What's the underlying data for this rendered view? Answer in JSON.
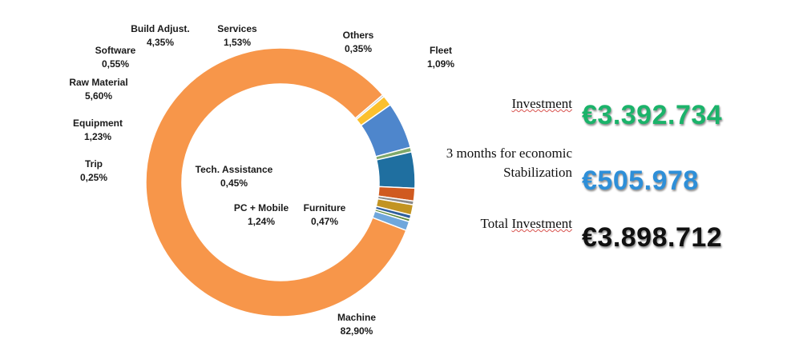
{
  "chart_data": {
    "type": "pie",
    "style": "donut",
    "slices": [
      {
        "label": "Machine",
        "value_text": "82,90%",
        "value": 82.9,
        "color": "#f7964a"
      },
      {
        "label": "Trip",
        "value_text": "0,25%",
        "value": 0.25,
        "color": "#c9c9c9"
      },
      {
        "label": "Equipment",
        "value_text": "1,23%",
        "value": 1.23,
        "color": "#fbc02d"
      },
      {
        "label": "Raw Material",
        "value_text": "5,60%",
        "value": 5.6,
        "color": "#4e86cc"
      },
      {
        "label": "Software",
        "value_text": "0,55%",
        "value": 0.55,
        "color": "#7fa86a"
      },
      {
        "label": "Build Adjust.",
        "value_text": "4,35%",
        "value": 4.35,
        "color": "#1f6fa0"
      },
      {
        "label": "Services",
        "value_text": "1,53%",
        "value": 1.53,
        "color": "#d05a20"
      },
      {
        "label": "Tech. Assistance",
        "value_text": "0,45%",
        "value": 0.45,
        "color": "#8a8a8a"
      },
      {
        "label": "PC + Mobile",
        "value_text": "1,24%",
        "value": 1.24,
        "color": "#c29422"
      },
      {
        "label": "Furniture",
        "value_text": "0,47%",
        "value": 0.47,
        "color": "#2f5f9c"
      },
      {
        "label": "Others",
        "value_text": "0,35%",
        "value": 0.35,
        "color": "#5e8a3a"
      },
      {
        "label": "Fleet",
        "value_text": "1,09%",
        "value": 1.09,
        "color": "#6fa7dc"
      }
    ]
  },
  "summary": {
    "investment_label": "Investment",
    "investment_value": "€3.392.734",
    "stabilization_line1": "3 months for economic",
    "stabilization_line2": "Stabilization",
    "stabilization_value": "€505.978",
    "total_label_word1": "Total",
    "total_label_word2": "Investment",
    "total_value": "€3.898.712",
    "colors": {
      "investment": "#1bb36a",
      "stabilization": "#2e8fd8",
      "total": "#111111"
    }
  }
}
